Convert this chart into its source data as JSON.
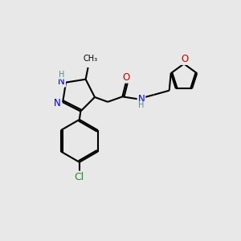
{
  "bg_color": "#e8e8e8",
  "bond_color": "#000000",
  "bond_width": 1.5,
  "atom_colors": {
    "N": "#0000cd",
    "O": "#cc0000",
    "C": "#000000",
    "H": "#4a9090",
    "Cl": "#228822"
  },
  "font_size": 8.5,
  "fig_size": [
    3.0,
    3.0
  ],
  "dpi": 100
}
